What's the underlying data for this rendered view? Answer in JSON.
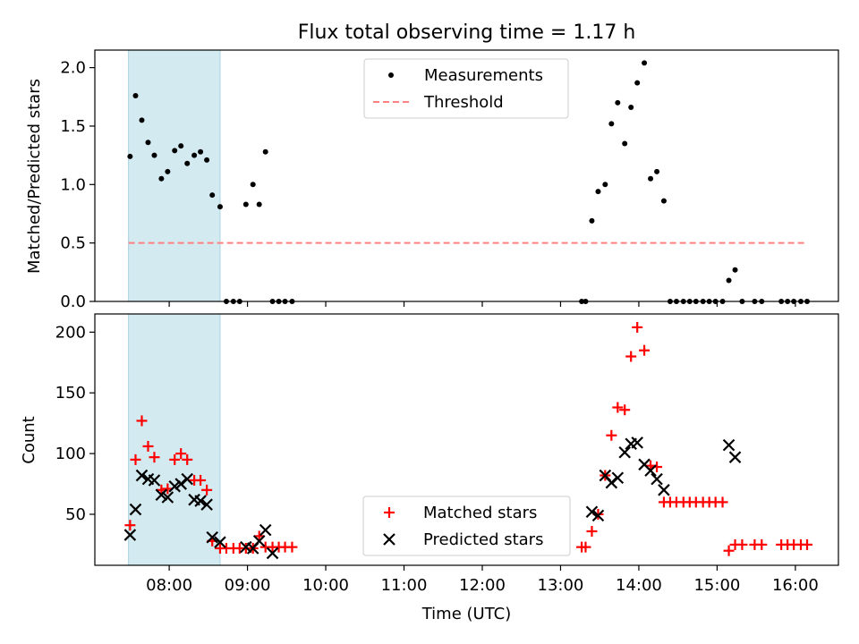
{
  "figure": {
    "title": "Flux total observing time = 1.17 h"
  },
  "chart_data": [
    {
      "type": "scatter",
      "ylabel": "Matched/Predicted stars",
      "xlabel": "",
      "x_unit": "hours UTC",
      "xlim": [
        7.05,
        16.55
      ],
      "ylim": [
        0,
        2.15
      ],
      "yticks": [
        0,
        0.5,
        1.0,
        1.5,
        2.0
      ],
      "ytick_labels": [
        "0.0",
        "0.5",
        "1.0",
        "1.5",
        "2.0"
      ],
      "shaded_span": [
        7.48,
        8.65
      ],
      "shaded_color": "#d2eaf0",
      "legend_position": "upper center",
      "series": [
        {
          "name": "Measurements",
          "color": "#000000",
          "marker": "dot",
          "points": [
            [
              7.5,
              1.24
            ],
            [
              7.57,
              1.76
            ],
            [
              7.65,
              1.55
            ],
            [
              7.73,
              1.36
            ],
            [
              7.81,
              1.25
            ],
            [
              7.9,
              1.05
            ],
            [
              7.98,
              1.11
            ],
            [
              8.07,
              1.29
            ],
            [
              8.15,
              1.33
            ],
            [
              8.23,
              1.18
            ],
            [
              8.32,
              1.25
            ],
            [
              8.4,
              1.28
            ],
            [
              8.48,
              1.21
            ],
            [
              8.55,
              0.91
            ],
            [
              8.65,
              0.81
            ],
            [
              8.73,
              0
            ],
            [
              8.82,
              0
            ],
            [
              8.9,
              0
            ],
            [
              8.98,
              0.83
            ],
            [
              9.07,
              1.0
            ],
            [
              9.15,
              0.83
            ],
            [
              9.23,
              1.28
            ],
            [
              9.32,
              0
            ],
            [
              9.4,
              0
            ],
            [
              9.48,
              0
            ],
            [
              9.57,
              0
            ],
            [
              13.27,
              0
            ],
            [
              13.32,
              0
            ],
            [
              13.4,
              0.69
            ],
            [
              13.48,
              0.94
            ],
            [
              13.57,
              1.0
            ],
            [
              13.65,
              1.52
            ],
            [
              13.73,
              1.7
            ],
            [
              13.82,
              1.35
            ],
            [
              13.9,
              1.66
            ],
            [
              13.98,
              1.87
            ],
            [
              14.07,
              2.04
            ],
            [
              14.15,
              1.05
            ],
            [
              14.23,
              1.11
            ],
            [
              14.32,
              0.86
            ],
            [
              14.4,
              0
            ],
            [
              14.48,
              0
            ],
            [
              14.57,
              0
            ],
            [
              14.65,
              0
            ],
            [
              14.73,
              0
            ],
            [
              14.82,
              0
            ],
            [
              14.9,
              0
            ],
            [
              14.98,
              0
            ],
            [
              15.07,
              0
            ],
            [
              15.15,
              0.18
            ],
            [
              15.23,
              0.27
            ],
            [
              15.32,
              0
            ],
            [
              15.48,
              0
            ],
            [
              15.57,
              0
            ],
            [
              15.82,
              0
            ],
            [
              15.9,
              0
            ],
            [
              15.98,
              0
            ],
            [
              16.07,
              0
            ],
            [
              16.15,
              0
            ]
          ]
        },
        {
          "name": "Threshold",
          "color": "#ff8080",
          "style": "dashed",
          "x": [
            7.48,
            16.15
          ],
          "y": [
            0.5,
            0.5
          ]
        }
      ]
    },
    {
      "type": "scatter",
      "ylabel": "Count",
      "xlabel": "Time (UTC)",
      "x_unit": "hours UTC",
      "xlim": [
        7.05,
        16.55
      ],
      "ylim": [
        8,
        215
      ],
      "yticks": [
        50,
        100,
        150,
        200
      ],
      "ytick_labels": [
        "50",
        "100",
        "150",
        "200"
      ],
      "xticks": [
        8,
        9,
        10,
        11,
        12,
        13,
        14,
        15,
        16
      ],
      "xtick_labels": [
        "08:00",
        "09:00",
        "10:00",
        "11:00",
        "12:00",
        "13:00",
        "14:00",
        "15:00",
        "16:00"
      ],
      "shaded_span": [
        7.48,
        8.65
      ],
      "shaded_color": "#d2eaf0",
      "legend_position": "lower center",
      "series": [
        {
          "name": "Matched stars",
          "color": "#ff0000",
          "marker": "plus",
          "points": [
            [
              7.5,
              41
            ],
            [
              7.57,
              95
            ],
            [
              7.65,
              127
            ],
            [
              7.73,
              106
            ],
            [
              7.81,
              97
            ],
            [
              7.9,
              70
            ],
            [
              7.98,
              71
            ],
            [
              8.07,
              95
            ],
            [
              8.15,
              100
            ],
            [
              8.23,
              95
            ],
            [
              8.32,
              78
            ],
            [
              8.4,
              78
            ],
            [
              8.48,
              70
            ],
            [
              8.55,
              28
            ],
            [
              8.65,
              22
            ],
            [
              8.73,
              22
            ],
            [
              8.82,
              22
            ],
            [
              8.9,
              22
            ],
            [
              8.98,
              22
            ],
            [
              9.07,
              22
            ],
            [
              9.15,
              32
            ],
            [
              9.23,
              23
            ],
            [
              9.32,
              23
            ],
            [
              9.4,
              23
            ],
            [
              9.48,
              23
            ],
            [
              9.57,
              23
            ],
            [
              13.27,
              23
            ],
            [
              13.32,
              23
            ],
            [
              13.4,
              36
            ],
            [
              13.48,
              50
            ],
            [
              13.57,
              82
            ],
            [
              13.65,
              115
            ],
            [
              13.73,
              138
            ],
            [
              13.82,
              136
            ],
            [
              13.9,
              180
            ],
            [
              13.98,
              204
            ],
            [
              14.07,
              185
            ],
            [
              14.15,
              90
            ],
            [
              14.23,
              89
            ],
            [
              14.32,
              60
            ],
            [
              14.4,
              60
            ],
            [
              14.48,
              60
            ],
            [
              14.57,
              60
            ],
            [
              14.65,
              60
            ],
            [
              14.73,
              60
            ],
            [
              14.82,
              60
            ],
            [
              14.9,
              60
            ],
            [
              14.98,
              60
            ],
            [
              15.07,
              60
            ],
            [
              15.15,
              20
            ],
            [
              15.23,
              25
            ],
            [
              15.32,
              25
            ],
            [
              15.48,
              25
            ],
            [
              15.57,
              25
            ],
            [
              15.82,
              25
            ],
            [
              15.9,
              25
            ],
            [
              15.98,
              25
            ],
            [
              16.07,
              25
            ],
            [
              16.15,
              25
            ]
          ]
        },
        {
          "name": "Predicted stars",
          "color": "#000000",
          "marker": "x",
          "points": [
            [
              7.5,
              33
            ],
            [
              7.57,
              54
            ],
            [
              7.65,
              82
            ],
            [
              7.73,
              79
            ],
            [
              7.81,
              78
            ],
            [
              7.9,
              66
            ],
            [
              7.98,
              64
            ],
            [
              8.07,
              73
            ],
            [
              8.15,
              75
            ],
            [
              8.23,
              79
            ],
            [
              8.32,
              62
            ],
            [
              8.4,
              61
            ],
            [
              8.48,
              58
            ],
            [
              8.55,
              31
            ],
            [
              8.65,
              27
            ],
            [
              8.98,
              23
            ],
            [
              9.07,
              22
            ],
            [
              9.15,
              28
            ],
            [
              9.23,
              37
            ],
            [
              9.32,
              18
            ],
            [
              13.4,
              52
            ],
            [
              13.48,
              49
            ],
            [
              13.57,
              82
            ],
            [
              13.65,
              76
            ],
            [
              13.73,
              80
            ],
            [
              13.82,
              101
            ],
            [
              13.9,
              108
            ],
            [
              13.98,
              109
            ],
            [
              14.07,
              91
            ],
            [
              14.15,
              86
            ],
            [
              14.23,
              79
            ],
            [
              14.32,
              70
            ],
            [
              15.15,
              107
            ],
            [
              15.23,
              97
            ]
          ]
        }
      ]
    }
  ]
}
